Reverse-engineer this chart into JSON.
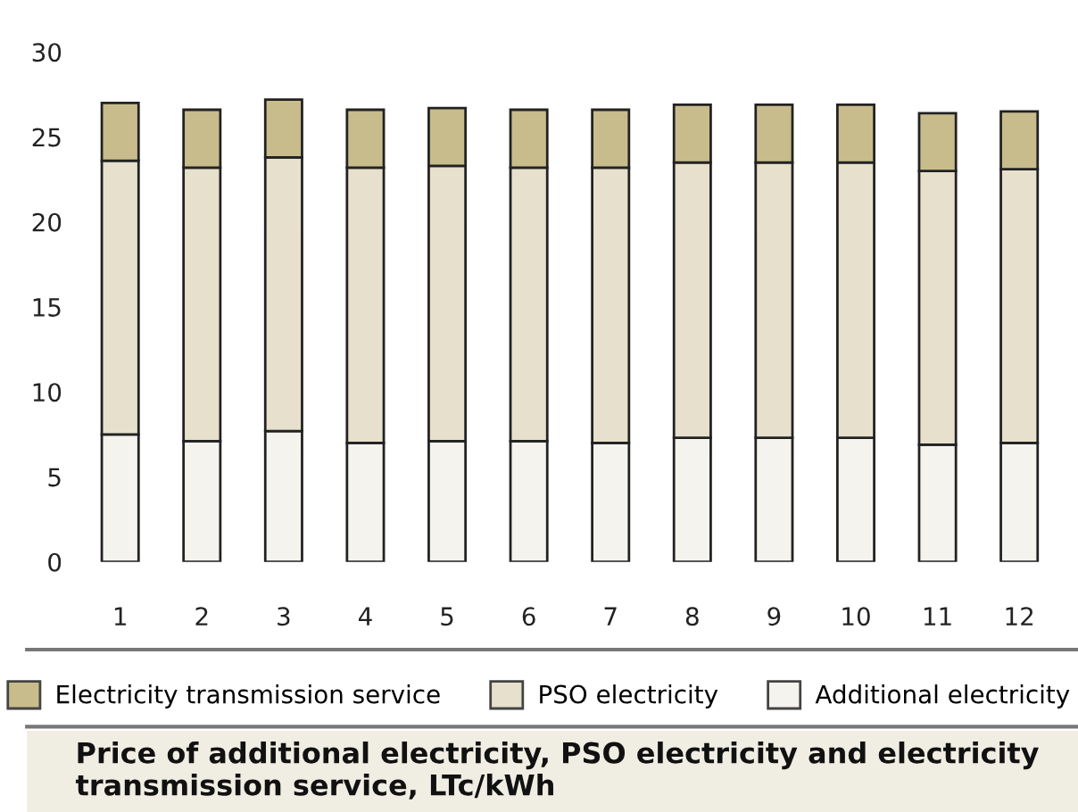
{
  "chart_data": {
    "type": "bar",
    "title": "Price of additional electricity, PSO electricity and electricity transmission service, LTc/kWh",
    "categories": [
      "1",
      "2",
      "3",
      "4",
      "5",
      "6",
      "7",
      "8",
      "9",
      "10",
      "11",
      "12"
    ],
    "stacked": true,
    "series": [
      {
        "name": "Additional electricity",
        "color": "#f5f3ee",
        "values": [
          7.5,
          7.1,
          7.7,
          7.0,
          7.1,
          7.1,
          7.0,
          7.3,
          7.3,
          7.3,
          6.9,
          7.0
        ]
      },
      {
        "name": "PSO electricity",
        "color": "#e6e0cc",
        "values": [
          16.1,
          16.1,
          16.1,
          16.2,
          16.2,
          16.1,
          16.2,
          16.2,
          16.2,
          16.2,
          16.1,
          16.1
        ]
      },
      {
        "name": "Electricity transmission service",
        "color": "#c8bc8c",
        "values": [
          3.4,
          3.4,
          3.4,
          3.4,
          3.4,
          3.4,
          3.4,
          3.4,
          3.4,
          3.4,
          3.4,
          3.4
        ]
      }
    ],
    "ylim": [
      0,
      30
    ],
    "yticks": [
      0,
      5,
      10,
      15,
      20,
      25,
      30
    ],
    "grid": false,
    "legend": "bottom"
  }
}
